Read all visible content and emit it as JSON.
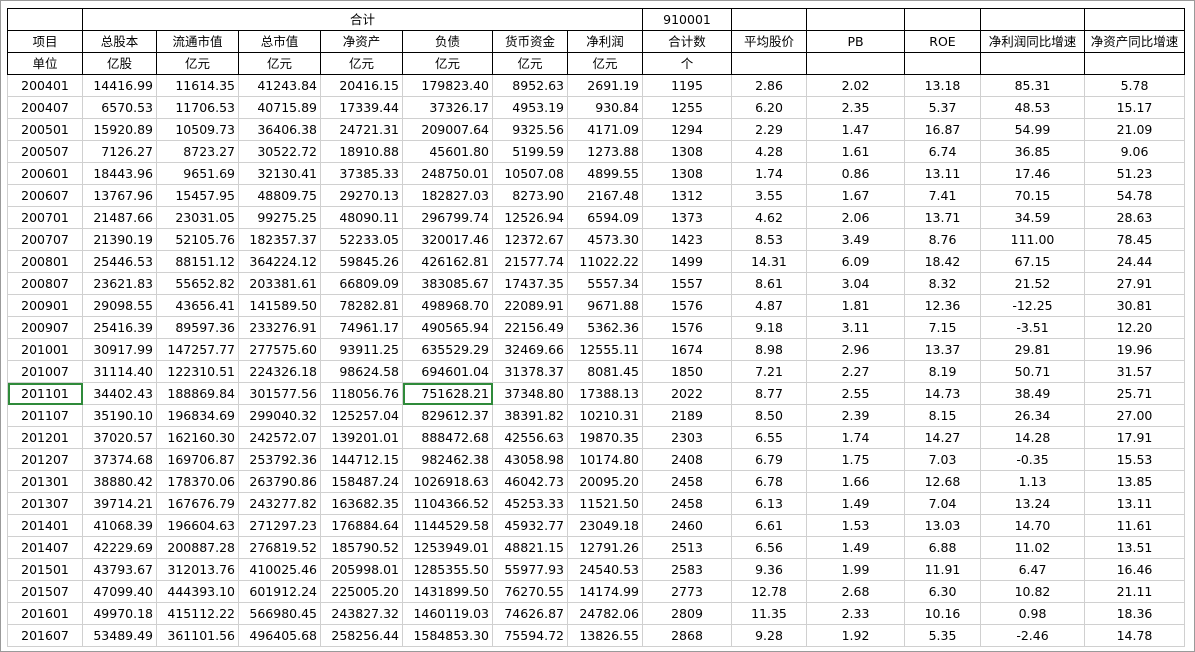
{
  "header": {
    "group_label": "合计",
    "code": "910001",
    "columns": [
      "项目",
      "总股本",
      "流通市值",
      "总市值",
      "净资产",
      "负债",
      "货币资金",
      "净利润",
      "合计数",
      "平均股价",
      "PB",
      "ROE",
      "净利润同比增速",
      "净资产同比增速"
    ],
    "units": [
      "单位",
      "亿股",
      "亿元",
      "亿元",
      "亿元",
      "亿元",
      "亿元",
      "亿元",
      "个",
      "",
      "",
      "",
      "",
      ""
    ]
  },
  "rows": [
    [
      "200401",
      "14416.99",
      "11614.35",
      "41243.84",
      "20416.15",
      "179823.40",
      "8952.63",
      "2691.19",
      "1195",
      "2.86",
      "2.02",
      "13.18",
      "85.31",
      "5.78"
    ],
    [
      "200407",
      "6570.53",
      "11706.53",
      "40715.89",
      "17339.44",
      "37326.17",
      "4953.19",
      "930.84",
      "1255",
      "6.20",
      "2.35",
      "5.37",
      "48.53",
      "15.17"
    ],
    [
      "200501",
      "15920.89",
      "10509.73",
      "36406.38",
      "24721.31",
      "209007.64",
      "9325.56",
      "4171.09",
      "1294",
      "2.29",
      "1.47",
      "16.87",
      "54.99",
      "21.09"
    ],
    [
      "200507",
      "7126.27",
      "8723.27",
      "30522.72",
      "18910.88",
      "45601.80",
      "5199.59",
      "1273.88",
      "1308",
      "4.28",
      "1.61",
      "6.74",
      "36.85",
      "9.06"
    ],
    [
      "200601",
      "18443.96",
      "9651.69",
      "32130.41",
      "37385.33",
      "248750.01",
      "10507.08",
      "4899.55",
      "1308",
      "1.74",
      "0.86",
      "13.11",
      "17.46",
      "51.23"
    ],
    [
      "200607",
      "13767.96",
      "15457.95",
      "48809.75",
      "29270.13",
      "182827.03",
      "8273.90",
      "2167.48",
      "1312",
      "3.55",
      "1.67",
      "7.41",
      "70.15",
      "54.78"
    ],
    [
      "200701",
      "21487.66",
      "23031.05",
      "99275.25",
      "48090.11",
      "296799.74",
      "12526.94",
      "6594.09",
      "1373",
      "4.62",
      "2.06",
      "13.71",
      "34.59",
      "28.63"
    ],
    [
      "200707",
      "21390.19",
      "52105.76",
      "182357.37",
      "52233.05",
      "320017.46",
      "12372.67",
      "4573.30",
      "1423",
      "8.53",
      "3.49",
      "8.76",
      "111.00",
      "78.45"
    ],
    [
      "200801",
      "25446.53",
      "88151.12",
      "364224.12",
      "59845.26",
      "426162.81",
      "21577.74",
      "11022.22",
      "1499",
      "14.31",
      "6.09",
      "18.42",
      "67.15",
      "24.44"
    ],
    [
      "200807",
      "23621.83",
      "55652.82",
      "203381.61",
      "66809.09",
      "383085.67",
      "17437.35",
      "5557.34",
      "1557",
      "8.61",
      "3.04",
      "8.32",
      "21.52",
      "27.91"
    ],
    [
      "200901",
      "29098.55",
      "43656.41",
      "141589.50",
      "78282.81",
      "498968.70",
      "22089.91",
      "9671.88",
      "1576",
      "4.87",
      "1.81",
      "12.36",
      "-12.25",
      "30.81"
    ],
    [
      "200907",
      "25416.39",
      "89597.36",
      "233276.91",
      "74961.17",
      "490565.94",
      "22156.49",
      "5362.36",
      "1576",
      "9.18",
      "3.11",
      "7.15",
      "-3.51",
      "12.20"
    ],
    [
      "201001",
      "30917.99",
      "147257.77",
      "277575.60",
      "93911.25",
      "635529.29",
      "32469.66",
      "12555.11",
      "1674",
      "8.98",
      "2.96",
      "13.37",
      "29.81",
      "19.96"
    ],
    [
      "201007",
      "31114.40",
      "122310.51",
      "224326.18",
      "98624.58",
      "694601.04",
      "31378.37",
      "8081.45",
      "1850",
      "7.21",
      "2.27",
      "8.19",
      "50.71",
      "31.57"
    ],
    [
      "201101",
      "34402.43",
      "188869.84",
      "301577.56",
      "118056.76",
      "751628.21",
      "37348.80",
      "17388.13",
      "2022",
      "8.77",
      "2.55",
      "14.73",
      "38.49",
      "25.71"
    ],
    [
      "201107",
      "35190.10",
      "196834.69",
      "299040.32",
      "125257.04",
      "829612.37",
      "38391.82",
      "10210.31",
      "2189",
      "8.50",
      "2.39",
      "8.15",
      "26.34",
      "27.00"
    ],
    [
      "201201",
      "37020.57",
      "162160.30",
      "242572.07",
      "139201.01",
      "888472.68",
      "42556.63",
      "19870.35",
      "2303",
      "6.55",
      "1.74",
      "14.27",
      "14.28",
      "17.91"
    ],
    [
      "201207",
      "37374.68",
      "169706.87",
      "253792.36",
      "144712.15",
      "982462.38",
      "43058.98",
      "10174.80",
      "2408",
      "6.79",
      "1.75",
      "7.03",
      "-0.35",
      "15.53"
    ],
    [
      "201301",
      "38880.42",
      "178370.06",
      "263790.86",
      "158487.24",
      "1026918.63",
      "46042.73",
      "20095.20",
      "2458",
      "6.78",
      "1.66",
      "12.68",
      "1.13",
      "13.85"
    ],
    [
      "201307",
      "39714.21",
      "167676.79",
      "243277.82",
      "163682.35",
      "1104366.52",
      "45253.33",
      "11521.50",
      "2458",
      "6.13",
      "1.49",
      "7.04",
      "13.24",
      "13.11"
    ],
    [
      "201401",
      "41068.39",
      "196604.63",
      "271297.23",
      "176884.64",
      "1144529.58",
      "45932.77",
      "23049.18",
      "2460",
      "6.61",
      "1.53",
      "13.03",
      "14.70",
      "11.61"
    ],
    [
      "201407",
      "42229.69",
      "200887.28",
      "276819.52",
      "185790.52",
      "1253949.01",
      "48821.15",
      "12791.26",
      "2513",
      "6.56",
      "1.49",
      "6.88",
      "11.02",
      "13.51"
    ],
    [
      "201501",
      "43793.67",
      "312013.76",
      "410025.46",
      "205998.01",
      "1285355.50",
      "55977.93",
      "24540.53",
      "2583",
      "9.36",
      "1.99",
      "11.91",
      "6.47",
      "16.46"
    ],
    [
      "201507",
      "47099.40",
      "444393.10",
      "601912.24",
      "225005.20",
      "1431899.50",
      "76270.55",
      "14174.99",
      "2773",
      "12.78",
      "2.68",
      "6.30",
      "10.82",
      "21.11"
    ],
    [
      "201601",
      "49970.18",
      "415112.22",
      "566980.45",
      "243827.32",
      "1460119.03",
      "74626.87",
      "24782.06",
      "2809",
      "11.35",
      "2.33",
      "10.16",
      "0.98",
      "18.36"
    ],
    [
      "201607",
      "53489.49",
      "361101.56",
      "496405.68",
      "258256.44",
      "1584853.30",
      "75594.72",
      "13826.55",
      "2868",
      "9.28",
      "1.92",
      "5.35",
      "-2.46",
      "14.78"
    ]
  ],
  "colors": {
    "red_text": "#e8191c",
    "selection": "#2f8a3a",
    "grid": "#d0d0d0"
  }
}
